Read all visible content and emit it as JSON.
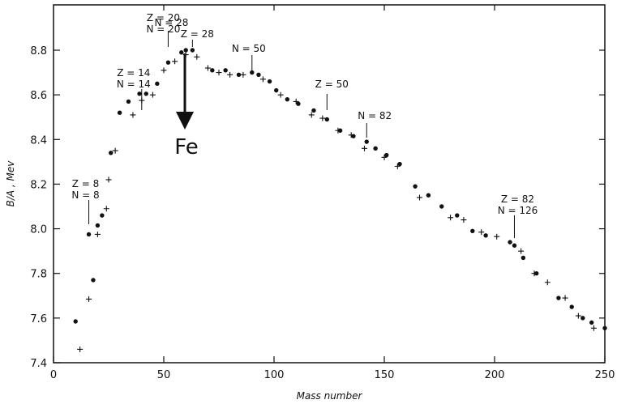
{
  "chart_data": {
    "type": "scatter",
    "title": "",
    "xlabel": "Mass number",
    "ylabel": "B/A , Mev",
    "xlim": [
      0,
      250
    ],
    "ylim": [
      7.4,
      8.9
    ],
    "xticks": [
      "0",
      "50",
      "100",
      "150",
      "200",
      "250"
    ],
    "yticks": [
      "7.4",
      "7.6",
      "7.8",
      "8.0",
      "8.2",
      "8.4",
      "8.6",
      "8.8"
    ],
    "grid": false,
    "series": [
      {
        "marker": "dot",
        "points": [
          [
            10,
            7.585
          ],
          [
            16,
            7.975
          ],
          [
            18,
            7.77
          ],
          [
            20,
            8.015
          ],
          [
            22,
            8.06
          ],
          [
            26,
            8.34
          ],
          [
            30,
            8.52
          ],
          [
            34,
            8.57
          ],
          [
            39,
            8.605
          ],
          [
            42,
            8.605
          ],
          [
            47,
            8.65
          ],
          [
            52,
            8.745
          ],
          [
            58,
            8.79
          ],
          [
            60,
            8.8
          ],
          [
            63,
            8.8
          ],
          [
            72,
            8.71
          ],
          [
            78,
            8.71
          ],
          [
            84,
            8.69
          ],
          [
            90,
            8.7
          ],
          [
            93,
            8.69
          ],
          [
            98,
            8.66
          ],
          [
            101,
            8.62
          ],
          [
            106,
            8.58
          ],
          [
            111,
            8.56
          ],
          [
            118,
            8.53
          ],
          [
            124,
            8.49
          ],
          [
            130,
            8.44
          ],
          [
            136,
            8.415
          ],
          [
            142,
            8.39
          ],
          [
            146,
            8.36
          ],
          [
            151,
            8.33
          ],
          [
            157,
            8.29
          ],
          [
            164,
            8.19
          ],
          [
            170,
            8.15
          ],
          [
            176,
            8.1
          ],
          [
            183,
            8.06
          ],
          [
            190,
            7.99
          ],
          [
            196,
            7.97
          ],
          [
            207,
            7.94
          ],
          [
            209,
            7.925
          ],
          [
            213,
            7.87
          ],
          [
            219,
            7.8
          ],
          [
            229,
            7.69
          ],
          [
            235,
            7.65
          ],
          [
            240,
            7.6
          ],
          [
            244,
            7.58
          ],
          [
            250,
            7.555
          ]
        ]
      },
      {
        "marker": "plus",
        "points": [
          [
            12,
            7.46
          ],
          [
            16,
            7.685
          ],
          [
            20,
            7.975
          ],
          [
            24,
            8.09
          ],
          [
            25,
            8.22
          ],
          [
            28,
            8.35
          ],
          [
            36,
            8.51
          ],
          [
            40,
            8.575
          ],
          [
            45,
            8.6
          ],
          [
            50,
            8.71
          ],
          [
            55,
            8.75
          ],
          [
            60,
            8.78
          ],
          [
            65,
            8.77
          ],
          [
            70,
            8.72
          ],
          [
            75,
            8.7
          ],
          [
            80,
            8.69
          ],
          [
            86,
            8.69
          ],
          [
            95,
            8.67
          ],
          [
            103,
            8.6
          ],
          [
            110,
            8.57
          ],
          [
            117,
            8.51
          ],
          [
            122,
            8.495
          ],
          [
            129,
            8.44
          ],
          [
            135,
            8.42
          ],
          [
            141,
            8.36
          ],
          [
            150,
            8.32
          ],
          [
            156,
            8.28
          ],
          [
            166,
            8.14
          ],
          [
            180,
            8.05
          ],
          [
            186,
            8.04
          ],
          [
            194,
            7.985
          ],
          [
            201,
            7.965
          ],
          [
            212,
            7.9
          ],
          [
            218,
            7.8
          ],
          [
            224,
            7.76
          ],
          [
            232,
            7.69
          ],
          [
            238,
            7.61
          ],
          [
            245,
            7.555
          ]
        ]
      }
    ],
    "annotations": [
      {
        "lines": [
          "Z = 8",
          "N = 8"
        ],
        "x": 16,
        "y": 7.99
      },
      {
        "lines": [
          "Z = 14",
          "N = 14"
        ],
        "x": 40,
        "y": 8.61
      },
      {
        "lines": [
          "Z = 20",
          "N = 20"
        ],
        "x": 52,
        "y": 8.75
      },
      {
        "lines": [
          "N = 28"
        ],
        "x": 52,
        "y": 8.75
      },
      {
        "lines": [
          "Z = 28"
        ],
        "x": 63,
        "y": 8.8
      },
      {
        "lines": [
          "N = 50"
        ],
        "x": 90,
        "y": 8.7
      },
      {
        "lines": [
          "Z = 50"
        ],
        "x": 124,
        "y": 8.49
      },
      {
        "lines": [
          "N = 82"
        ],
        "x": 142,
        "y": 8.395
      },
      {
        "lines": [
          "Z = 82",
          "N = 126"
        ],
        "x": 209,
        "y": 7.925
      }
    ],
    "arrow_label": "Fe"
  }
}
